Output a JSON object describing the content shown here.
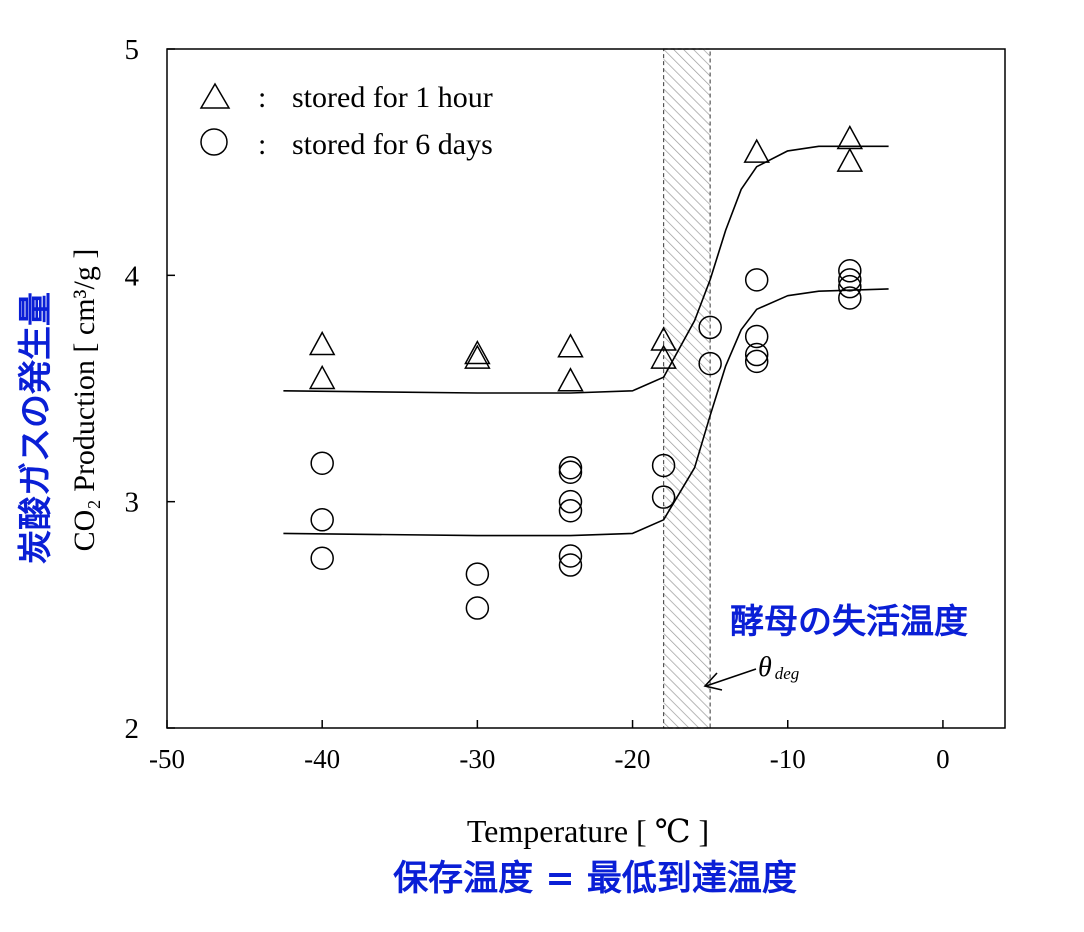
{
  "chart_data": {
    "type": "scatter",
    "xlabel": "Temperature [ ℃ ]",
    "xlabel_ja": "保存温度 = 最低到達温度",
    "ylabel": "CO₂ Production [ cm³/g ]",
    "ylabel_ja": "炭酸ガスの発生量",
    "xlim": [
      -50,
      4
    ],
    "ylim": [
      2,
      5
    ],
    "x_ticks": [
      -50,
      -40,
      -30,
      -20,
      -10,
      0
    ],
    "x_tick_labels": [
      "-50",
      "-40",
      "-30",
      "-20",
      "-10",
      "0"
    ],
    "y_ticks": [
      2,
      3,
      4,
      5
    ],
    "y_tick_labels": [
      "2",
      "3",
      "4",
      "5"
    ],
    "grid": false,
    "legend_position": "top-left",
    "legend": [
      {
        "marker": "triangle",
        "separator": ":",
        "label": "stored for 1 hour"
      },
      {
        "marker": "circle",
        "separator": ":",
        "label": "stored for 6 days"
      }
    ],
    "series": [
      {
        "name": "stored for 1 hour",
        "marker": "triangle",
        "points": [
          {
            "x": -40,
            "y": 3.69
          },
          {
            "x": -40,
            "y": 3.54
          },
          {
            "x": -30,
            "y": 3.65
          },
          {
            "x": -30,
            "y": 3.63
          },
          {
            "x": -24,
            "y": 3.68
          },
          {
            "x": -24,
            "y": 3.53
          },
          {
            "x": -18,
            "y": 3.71
          },
          {
            "x": -18,
            "y": 3.63
          },
          {
            "x": -12,
            "y": 4.54
          },
          {
            "x": -6,
            "y": 4.6
          },
          {
            "x": -6,
            "y": 4.5
          }
        ],
        "fit_curve": [
          {
            "x": -42.5,
            "y": 3.49
          },
          {
            "x": -30,
            "y": 3.48
          },
          {
            "x": -24,
            "y": 3.48
          },
          {
            "x": -20,
            "y": 3.49
          },
          {
            "x": -18,
            "y": 3.55
          },
          {
            "x": -16,
            "y": 3.8
          },
          {
            "x": -15,
            "y": 3.98
          },
          {
            "x": -14,
            "y": 4.2
          },
          {
            "x": -13,
            "y": 4.38
          },
          {
            "x": -12,
            "y": 4.48
          },
          {
            "x": -10,
            "y": 4.55
          },
          {
            "x": -8,
            "y": 4.57
          },
          {
            "x": -3.5,
            "y": 4.57
          }
        ]
      },
      {
        "name": "stored for 6 days",
        "marker": "circle",
        "points": [
          {
            "x": -40,
            "y": 3.17
          },
          {
            "x": -40,
            "y": 2.92
          },
          {
            "x": -40,
            "y": 2.75
          },
          {
            "x": -30,
            "y": 2.68
          },
          {
            "x": -30,
            "y": 2.53
          },
          {
            "x": -24,
            "y": 3.15
          },
          {
            "x": -24,
            "y": 3.13
          },
          {
            "x": -24,
            "y": 3.0
          },
          {
            "x": -24,
            "y": 2.96
          },
          {
            "x": -24,
            "y": 2.76
          },
          {
            "x": -24,
            "y": 2.72
          },
          {
            "x": -18,
            "y": 3.16
          },
          {
            "x": -18,
            "y": 3.02
          },
          {
            "x": -15,
            "y": 3.77
          },
          {
            "x": -15,
            "y": 3.61
          },
          {
            "x": -12,
            "y": 3.98
          },
          {
            "x": -12,
            "y": 3.73
          },
          {
            "x": -12,
            "y": 3.65
          },
          {
            "x": -12,
            "y": 3.62
          },
          {
            "x": -6,
            "y": 4.02
          },
          {
            "x": -6,
            "y": 3.98
          },
          {
            "x": -6,
            "y": 3.95
          },
          {
            "x": -6,
            "y": 3.9
          }
        ],
        "fit_curve": [
          {
            "x": -42.5,
            "y": 2.86
          },
          {
            "x": -30,
            "y": 2.85
          },
          {
            "x": -24,
            "y": 2.85
          },
          {
            "x": -20,
            "y": 2.86
          },
          {
            "x": -18,
            "y": 2.92
          },
          {
            "x": -16,
            "y": 3.15
          },
          {
            "x": -15,
            "y": 3.38
          },
          {
            "x": -14,
            "y": 3.6
          },
          {
            "x": -13,
            "y": 3.76
          },
          {
            "x": -12,
            "y": 3.85
          },
          {
            "x": -10,
            "y": 3.91
          },
          {
            "x": -8,
            "y": 3.93
          },
          {
            "x": -3.5,
            "y": 3.94
          }
        ]
      }
    ],
    "shaded_region": {
      "x0": -18,
      "x1": -15,
      "y0": 2,
      "y1": 5,
      "pattern": "diagonal-hatch"
    },
    "annotations": [
      {
        "text": "酵母の失活温度",
        "color": "#0a1fd6"
      },
      {
        "text": "θ",
        "subscript": "deg",
        "points_to": {
          "x": -16,
          "y": 2.18
        }
      }
    ]
  }
}
